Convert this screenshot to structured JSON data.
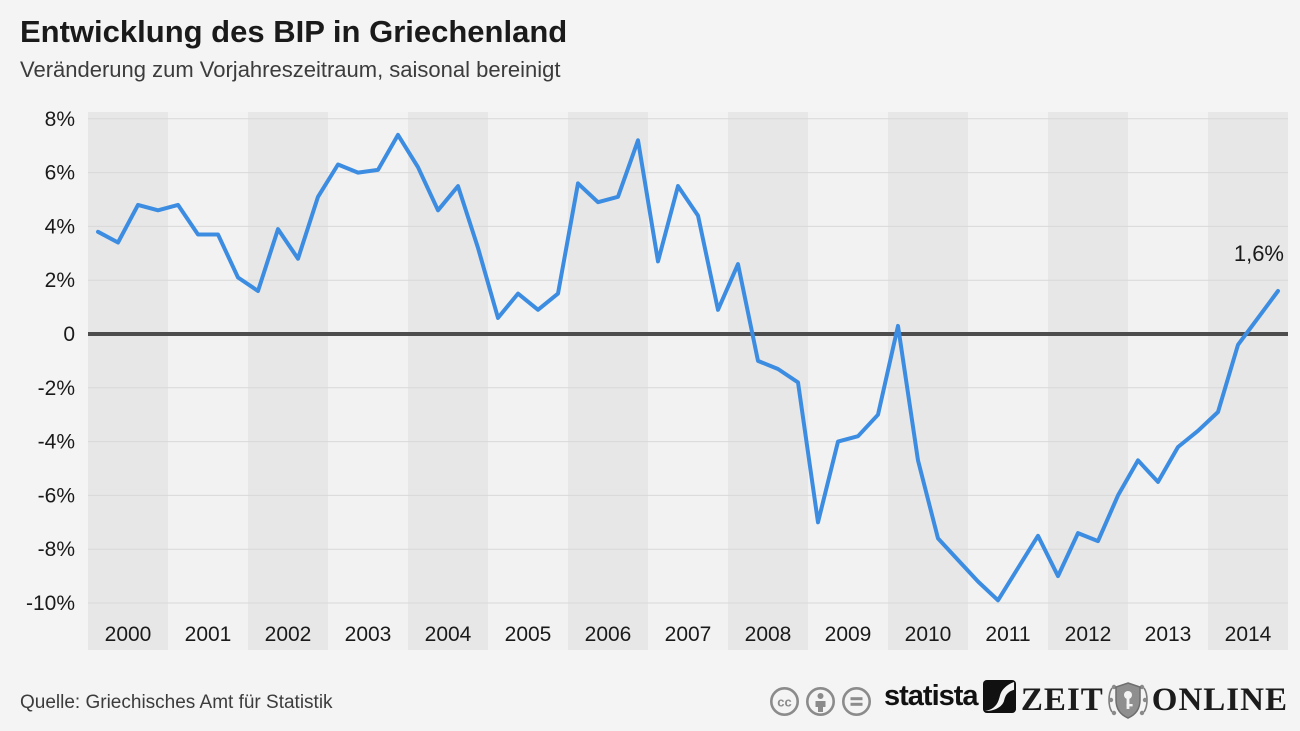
{
  "header": {
    "title": "Entwicklung des BIP in Griechenland",
    "subtitle": "Veränderung zum Vorjahreszeitraum, saisonal bereinigt"
  },
  "chart_data": {
    "type": "line",
    "title": "Entwicklung des BIP in Griechenland",
    "subtitle": "Veränderung zum Vorjahreszeitraum, saisonal bereinigt",
    "x_categories_years": [
      "2000",
      "2001",
      "2002",
      "2003",
      "2004",
      "2005",
      "2006",
      "2007",
      "2008",
      "2009",
      "2010",
      "2011",
      "2012",
      "2013",
      "2014"
    ],
    "x_unit": "Quartal (4 Datenpunkte pro Jahr)",
    "series": [
      {
        "name": "BIP-Veränderung zum Vorjahreszeitraum in %",
        "x_range": [
          "2000 Q1",
          "2014 Q4"
        ],
        "values": [
          3.8,
          3.4,
          4.8,
          4.6,
          4.8,
          3.7,
          3.7,
          2.1,
          1.6,
          3.9,
          2.8,
          5.1,
          6.3,
          6.0,
          6.1,
          7.4,
          6.2,
          4.6,
          5.5,
          3.2,
          0.6,
          1.5,
          0.9,
          1.5,
          5.6,
          4.9,
          5.1,
          7.2,
          2.7,
          5.5,
          4.4,
          0.9,
          2.6,
          -1.0,
          -1.3,
          -1.8,
          -7.0,
          -4.0,
          -3.8,
          -3.0,
          0.3,
          -4.7,
          -7.6,
          -8.4,
          -9.2,
          -9.9,
          -8.7,
          -7.5,
          -9.0,
          -7.4,
          -7.7,
          -6.0,
          -4.7,
          -5.5,
          -4.2,
          -3.6,
          -2.9,
          -0.4,
          0.6,
          1.6
        ]
      }
    ],
    "ylim": [
      -10,
      8
    ],
    "ytick_labels": [
      "8%",
      "6%",
      "4%",
      "2%",
      "0",
      "-2%",
      "-4%",
      "-6%",
      "-8%",
      "-10%"
    ],
    "ytick_values": [
      8,
      6,
      4,
      2,
      0,
      -2,
      -4,
      -6,
      -8,
      -10
    ],
    "grid": true,
    "legend": "none",
    "annotation": {
      "text": "1,6%",
      "at": "2014 Q4"
    },
    "line_color": "#3c8de2",
    "band_color_dark": "#e7e7e7",
    "band_color_light": "#f2f2f2",
    "gridline_color": "#d8d8d8",
    "zero_line_color": "#4d4d4d",
    "label_color": "#1a1a1a"
  },
  "footer": {
    "source": "Quelle: Griechisches Amt für Statistik",
    "license_icons": [
      "cc",
      "by",
      "nd"
    ],
    "statista_label": "statista",
    "zeit_label_left": "ZEIT",
    "zeit_label_right": "ONLINE"
  }
}
